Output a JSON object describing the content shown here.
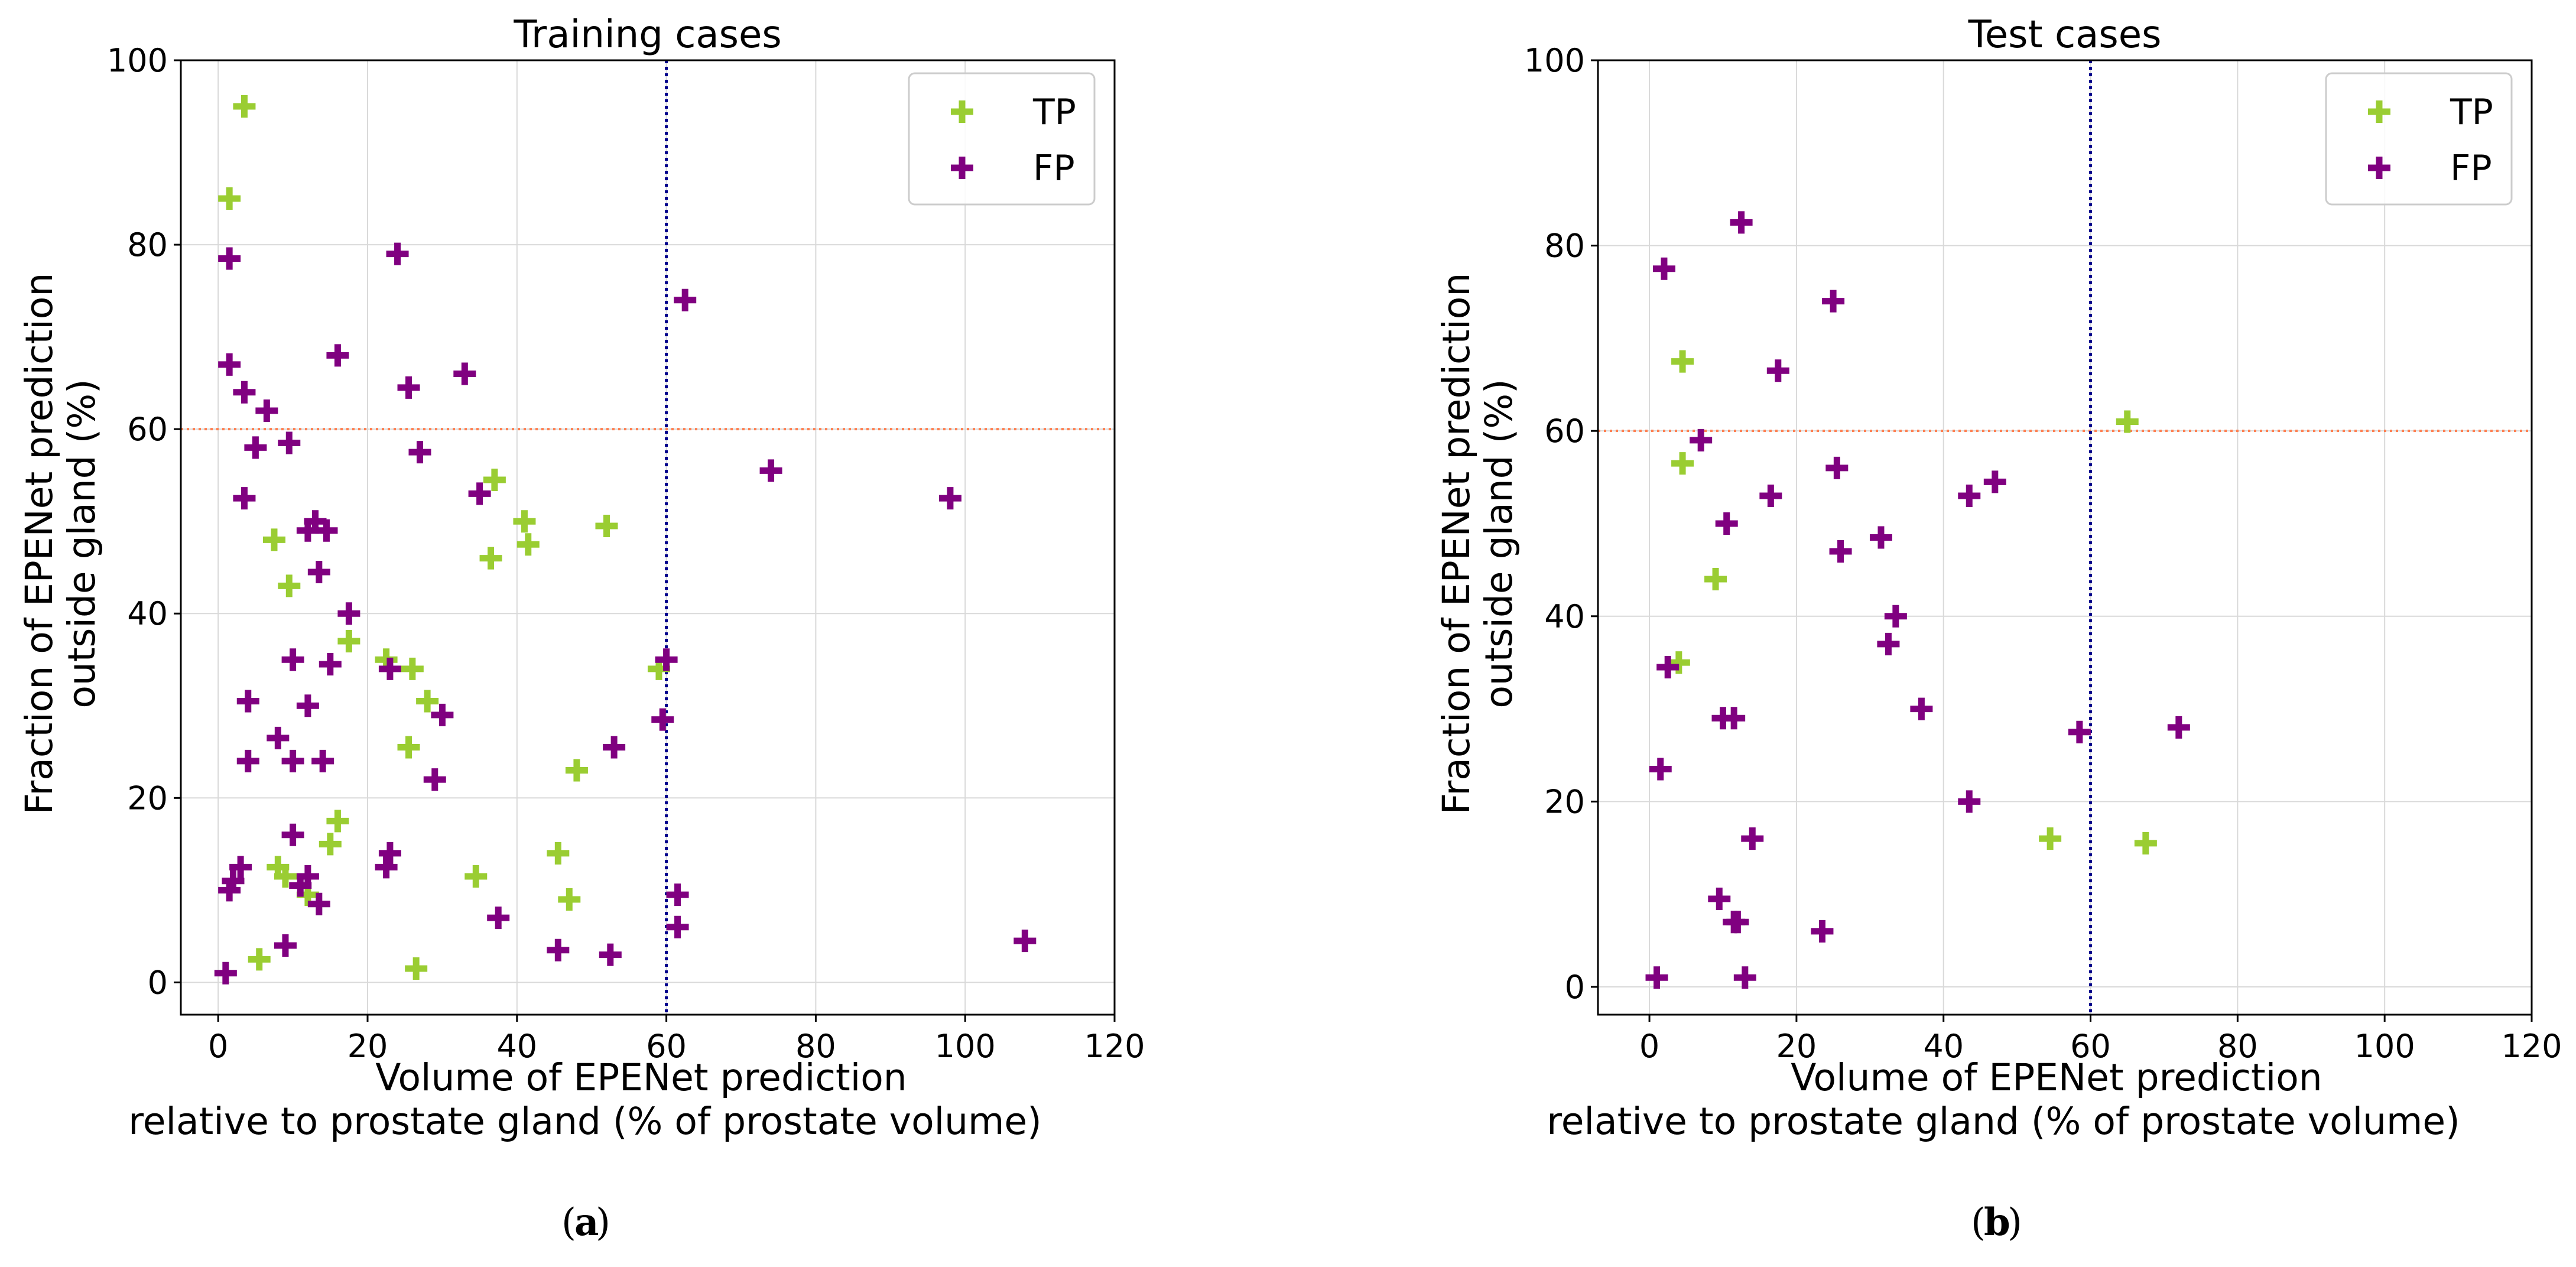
{
  "colors": {
    "tp": "#9acd32",
    "fp": "#800080",
    "hline": "#ff7f50",
    "vline": "#00008b",
    "grid": "#d9d9d9"
  },
  "chart_data": [
    {
      "type": "scatter",
      "title": "Training cases",
      "xlabel": [
        "Volume of EPENet prediction",
        "relative to prostate gland (% of prostate volume)"
      ],
      "ylabel": [
        "Fraction of EPENet prediction",
        "outside gland (%)"
      ],
      "xlim": [
        -5,
        120
      ],
      "ylim": [
        -3.5,
        100
      ],
      "xticks": [
        0,
        20,
        40,
        60,
        80,
        100,
        120
      ],
      "yticks": [
        0,
        20,
        40,
        60,
        80,
        100
      ],
      "grid": true,
      "hline": 60,
      "vline": 60,
      "legend_position": "top-right",
      "caption": {
        "open": "(",
        "label": "a",
        "close": ")"
      },
      "series": [
        {
          "name": "TP",
          "color": "#9acd32",
          "marker": "plus",
          "points": [
            [
              3.5,
              95
            ],
            [
              1.5,
              85
            ],
            [
              7.5,
              48
            ],
            [
              9.5,
              43
            ],
            [
              17.5,
              37
            ],
            [
              16,
              17.5
            ],
            [
              15,
              15
            ],
            [
              8,
              12.5
            ],
            [
              9,
              11.5
            ],
            [
              12,
              9.5
            ],
            [
              5.5,
              2.5
            ],
            [
              26.5,
              1.5
            ],
            [
              22.5,
              35
            ],
            [
              26,
              34
            ],
            [
              28,
              30.5
            ],
            [
              25.5,
              25.5
            ],
            [
              37,
              54.5
            ],
            [
              36.5,
              46
            ],
            [
              41,
              50
            ],
            [
              41.5,
              47.5
            ],
            [
              52,
              49.5
            ],
            [
              34.5,
              11.5
            ],
            [
              45.5,
              14
            ],
            [
              47,
              9
            ],
            [
              48,
              23
            ],
            [
              59,
              34
            ]
          ]
        },
        {
          "name": "FP",
          "color": "#800080",
          "marker": "plus",
          "points": [
            [
              1.5,
              78.5
            ],
            [
              1.5,
              67
            ],
            [
              3.5,
              64
            ],
            [
              5,
              58
            ],
            [
              3.5,
              52.5
            ],
            [
              6.5,
              62
            ],
            [
              9.5,
              58.5
            ],
            [
              4,
              30.5
            ],
            [
              4,
              24
            ],
            [
              3,
              12.5
            ],
            [
              2,
              11
            ],
            [
              1.5,
              10
            ],
            [
              1,
              1
            ],
            [
              8,
              26.5
            ],
            [
              10,
              35
            ],
            [
              10,
              24
            ],
            [
              10,
              16
            ],
            [
              12,
              30
            ],
            [
              12,
              11.5
            ],
            [
              11,
              10.5
            ],
            [
              13.5,
              8.5
            ],
            [
              9,
              4
            ],
            [
              12,
              49
            ],
            [
              13,
              50
            ],
            [
              14.5,
              49
            ],
            [
              13.5,
              44.5
            ],
            [
              14,
              24
            ],
            [
              15,
              34.5
            ],
            [
              17.5,
              40
            ],
            [
              16,
              68
            ],
            [
              24,
              79
            ],
            [
              25.5,
              64.5
            ],
            [
              27,
              57.5
            ],
            [
              23,
              34
            ],
            [
              23,
              14
            ],
            [
              22.5,
              12.5
            ],
            [
              29,
              22
            ],
            [
              30,
              29
            ],
            [
              33,
              66
            ],
            [
              35,
              53
            ],
            [
              37.5,
              7
            ],
            [
              45.5,
              3.5
            ],
            [
              52.5,
              3
            ],
            [
              53,
              25.5
            ],
            [
              60,
              35
            ],
            [
              59.5,
              28.5
            ],
            [
              61.5,
              9.5
            ],
            [
              61.5,
              6
            ],
            [
              62.5,
              74
            ],
            [
              74,
              55.5
            ],
            [
              98,
              52.5
            ],
            [
              108,
              4.5
            ]
          ]
        }
      ]
    },
    {
      "type": "scatter",
      "title": "Test cases",
      "xlabel": [
        "Volume of EPENet prediction",
        "relative to prostate gland (% of prostate volume)"
      ],
      "ylabel": [
        "Fraction of EPENet prediction",
        "outside gland (%)"
      ],
      "xlim": [
        -7,
        120
      ],
      "ylim": [
        -3,
        100
      ],
      "xticks": [
        0,
        20,
        40,
        60,
        80,
        100,
        120
      ],
      "yticks": [
        0,
        20,
        40,
        60,
        80,
        100
      ],
      "grid": true,
      "hline": 60,
      "vline": 60,
      "legend_position": "top-right",
      "caption": {
        "open": "(",
        "label": "b",
        "close": ")"
      },
      "series": [
        {
          "name": "TP",
          "color": "#9acd32",
          "marker": "plus",
          "points": [
            [
              4.5,
              67.5
            ],
            [
              4.5,
              56.5
            ],
            [
              9,
              44
            ],
            [
              4,
              35
            ],
            [
              54.5,
              16
            ],
            [
              65,
              61
            ],
            [
              67.5,
              15.5
            ]
          ]
        },
        {
          "name": "FP",
          "color": "#800080",
          "marker": "plus",
          "points": [
            [
              2,
              77.5
            ],
            [
              12.5,
              82.5
            ],
            [
              25,
              74
            ],
            [
              17.5,
              66.5
            ],
            [
              7,
              59
            ],
            [
              10.5,
              50
            ],
            [
              16.5,
              53
            ],
            [
              25.5,
              56
            ],
            [
              26,
              47
            ],
            [
              31.5,
              48.5
            ],
            [
              33.5,
              40
            ],
            [
              32.5,
              37
            ],
            [
              43.5,
              53
            ],
            [
              47,
              54.5
            ],
            [
              37,
              30
            ],
            [
              43.5,
              20
            ],
            [
              58.5,
              27.5
            ],
            [
              72,
              28
            ],
            [
              2.5,
              34.5
            ],
            [
              1.5,
              23.5
            ],
            [
              10,
              29
            ],
            [
              11.5,
              29
            ],
            [
              14,
              16
            ],
            [
              9.5,
              9.5
            ],
            [
              11.5,
              7
            ],
            [
              12,
              7
            ],
            [
              23.5,
              6
            ],
            [
              13,
              1
            ],
            [
              1,
              1
            ]
          ]
        }
      ]
    }
  ]
}
